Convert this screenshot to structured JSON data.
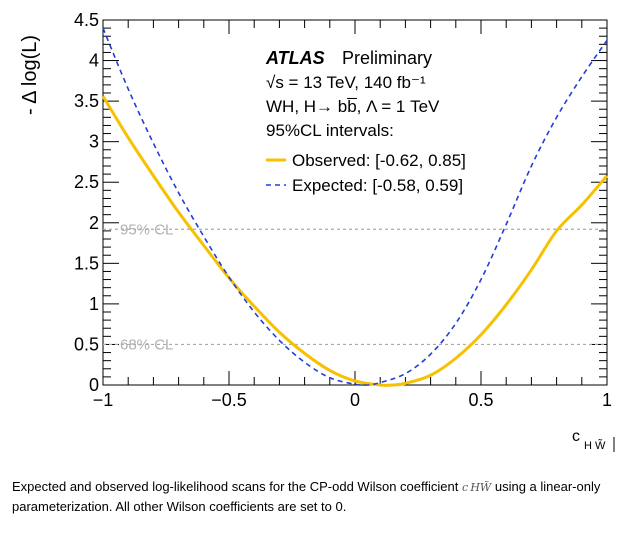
{
  "chart_data": {
    "type": "line",
    "xlabel_main": "c",
    "xlabel_sub": "H W̃",
    "ylabel": "- Δ log(L)",
    "xlim": [
      -1,
      1
    ],
    "ylim": [
      0,
      4.5
    ],
    "x_ticks": [
      -1,
      -0.5,
      0,
      0.5,
      1
    ],
    "x_tick_labels": [
      "−1",
      "−0.5",
      "0",
      "0.5",
      "1"
    ],
    "y_ticks": [
      0,
      0.5,
      1,
      1.5,
      2,
      2.5,
      3,
      3.5,
      4,
      4.5
    ],
    "y_tick_labels": [
      "0",
      "0.5",
      "1",
      "1.5",
      "2",
      "2.5",
      "3",
      "3.5",
      "4",
      "4.5"
    ],
    "grid": false,
    "thresholds": [
      {
        "y": 1.92,
        "label": "95% CL"
      },
      {
        "y": 0.5,
        "label": "68% CL"
      }
    ],
    "series": [
      {
        "name": "Observed: [-0.62, 0.85]",
        "style": "solid",
        "color": "#f5c100",
        "x": [
          -1.0,
          -0.9,
          -0.8,
          -0.7,
          -0.6,
          -0.5,
          -0.4,
          -0.3,
          -0.2,
          -0.1,
          0.0,
          0.1,
          0.15,
          0.2,
          0.3,
          0.4,
          0.5,
          0.6,
          0.7,
          0.8,
          0.9,
          1.0
        ],
        "y": [
          3.56,
          3.05,
          2.58,
          2.13,
          1.72,
          1.32,
          0.97,
          0.65,
          0.39,
          0.18,
          0.05,
          0.0,
          0.0,
          0.02,
          0.12,
          0.33,
          0.62,
          0.99,
          1.42,
          1.9,
          2.22,
          2.58
        ]
      },
      {
        "name": "Expected: [-0.58, 0.59]",
        "style": "dashed",
        "color": "#1f3fd6",
        "x": [
          -1.0,
          -0.9,
          -0.8,
          -0.7,
          -0.6,
          -0.5,
          -0.4,
          -0.3,
          -0.2,
          -0.1,
          0.0,
          0.05,
          0.1,
          0.2,
          0.3,
          0.4,
          0.5,
          0.6,
          0.7,
          0.8,
          0.9,
          1.0
        ],
        "y": [
          4.4,
          3.65,
          2.98,
          2.37,
          1.83,
          1.33,
          0.9,
          0.55,
          0.28,
          0.09,
          0.01,
          0.0,
          0.03,
          0.14,
          0.38,
          0.76,
          1.3,
          1.98,
          2.7,
          3.3,
          3.8,
          4.25
        ]
      }
    ],
    "annotations": {
      "experiment": "ATLAS",
      "status": "Preliminary",
      "line1": "√s = 13 TeV, 140 fb⁻¹",
      "line2": "WH, H→ bb̅,   Λ = 1 TeV",
      "line3": "95%CL intervals:"
    }
  },
  "caption": {
    "text_before": "Expected and observed log-likelihood scans for the CP-odd Wilson coefficient ",
    "symbol": "c HW̃",
    "text_after": " using a linear-only parameterization. All other Wilson coefficients are set to 0."
  }
}
